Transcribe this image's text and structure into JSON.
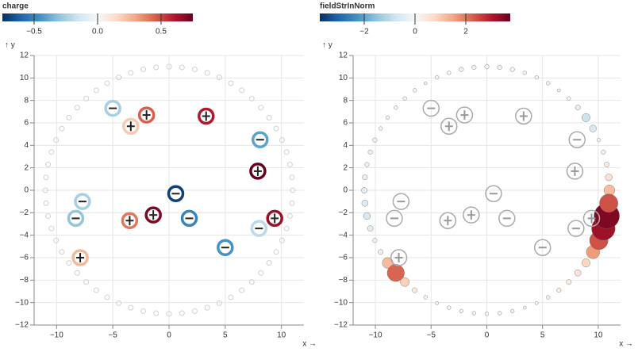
{
  "chart_data": [
    {
      "type": "charge-field",
      "legend_title": "charge",
      "x_label": "x →",
      "y_label": "↑ y",
      "color_scheme": [
        "#053061",
        "#2166ac",
        "#4393c3",
        "#92c5de",
        "#d1e5f0",
        "#f7f7f7",
        "#fddbc7",
        "#f4a582",
        "#d6604d",
        "#b2182b",
        "#67001f"
      ],
      "color_domain": [
        -0.75,
        0.75
      ],
      "legend_ticks": [
        {
          "value": -0.5,
          "label": "−0.5"
        },
        {
          "value": 0,
          "label": "0.0"
        },
        {
          "value": 0.5,
          "label": "0.5"
        }
      ],
      "xlim": [
        -12,
        12
      ],
      "ylim": [
        -12,
        12
      ],
      "grid": true,
      "xticks": [
        {
          "value": -10,
          "label": "−10"
        },
        {
          "value": -5,
          "label": "−5"
        },
        0,
        5,
        10
      ],
      "yticks": [
        {
          "value": -12,
          "label": "−12"
        },
        {
          "value": -10,
          "label": "−10"
        },
        {
          "value": -8,
          "label": "−8"
        },
        {
          "value": -6,
          "label": "−6"
        },
        {
          "value": -4,
          "label": "−4"
        },
        {
          "value": -2,
          "label": "−2"
        },
        0,
        2,
        4,
        6,
        8,
        10,
        12
      ],
      "charges": {
        "x": [
          -5.0,
          -3.4,
          -2.0,
          3.3,
          8.1,
          7.9,
          0.6,
          -7.7,
          -8.3,
          -3.5,
          -1.4,
          1.8,
          9.4,
          8.0,
          5.0,
          -7.9
        ],
        "y": [
          7.3,
          5.7,
          6.7,
          6.6,
          4.5,
          1.7,
          -0.3,
          -1.0,
          -2.5,
          -2.7,
          -2.2,
          -2.5,
          -2.5,
          -3.4,
          -5.1,
          -6.0
        ],
        "values": [
          -0.25,
          0.2,
          0.45,
          0.6,
          -0.4,
          0.75,
          -0.7,
          -0.25,
          -0.3,
          0.4,
          0.7,
          -0.5,
          0.65,
          -0.2,
          -0.45,
          0.25
        ]
      },
      "probes": {
        "x": [
          11,
          10.94,
          10.76,
          10.46,
          10.05,
          9.53,
          8.9,
          8.17,
          7.36,
          6.47,
          5.5,
          4.47,
          3.4,
          2.29,
          1.15,
          0,
          -1.15,
          -2.29,
          -3.4,
          -4.47,
          -5.5,
          -6.47,
          -7.36,
          -8.17,
          -8.9,
          -9.53,
          -10.05,
          -10.46,
          -10.76,
          -10.94,
          -11,
          -10.94,
          -10.76,
          -10.46,
          -10.05,
          -9.53,
          -8.9,
          -8.17,
          -7.36,
          -6.47,
          -5.5,
          -4.47,
          -3.4,
          -2.29,
          -1.15,
          0,
          1.15,
          2.29,
          3.4,
          4.47,
          5.5,
          6.47,
          7.36,
          8.17,
          8.9,
          9.53,
          10.05,
          10.46,
          10.76,
          10.94
        ],
        "y": [
          0,
          1.15,
          2.29,
          3.4,
          4.47,
          5.5,
          6.47,
          7.36,
          8.17,
          8.9,
          9.53,
          10.05,
          10.46,
          10.76,
          10.94,
          11,
          10.94,
          10.76,
          10.46,
          10.05,
          9.53,
          8.9,
          8.17,
          7.36,
          6.47,
          5.5,
          4.47,
          3.4,
          2.29,
          1.15,
          0,
          -1.15,
          -2.29,
          -3.4,
          -4.47,
          -5.5,
          -6.47,
          -7.36,
          -8.17,
          -8.9,
          -9.53,
          -10.05,
          -10.46,
          -10.76,
          -10.94,
          -11,
          -10.94,
          -10.76,
          -10.46,
          -10.05,
          -9.53,
          -8.9,
          -8.17,
          -7.36,
          -6.47,
          -5.5,
          -4.47,
          -3.4,
          -2.29,
          -1.15
        ]
      }
    },
    {
      "type": "field-strength",
      "legend_title": "fieldStrInNorm",
      "x_label": "x →",
      "y_label": "↑ y",
      "color_scheme": [
        "#053061",
        "#2166ac",
        "#4393c3",
        "#92c5de",
        "#d1e5f0",
        "#f7f7f7",
        "#fddbc7",
        "#f4a582",
        "#d6604d",
        "#b2182b",
        "#67001f"
      ],
      "color_domain": [
        -3.75,
        3.75
      ],
      "legend_ticks": [
        {
          "value": -2,
          "label": "−2"
        },
        0,
        2
      ],
      "xlim": [
        -12,
        12
      ],
      "ylim": [
        -12,
        12
      ],
      "grid": true,
      "xticks": [
        {
          "value": -10,
          "label": "−10"
        },
        {
          "value": -5,
          "label": "−5"
        },
        0,
        5,
        10
      ],
      "yticks": [
        {
          "value": -12,
          "label": "−12"
        },
        {
          "value": -10,
          "label": "−10"
        },
        {
          "value": -8,
          "label": "−8"
        },
        {
          "value": -6,
          "label": "−6"
        },
        {
          "value": -4,
          "label": "−4"
        },
        {
          "value": -2,
          "label": "−2"
        },
        0,
        2,
        4,
        6,
        8,
        10,
        12
      ],
      "charges": {
        "x": [
          -5.0,
          -3.4,
          -2.0,
          3.3,
          8.1,
          7.9,
          0.6,
          -7.7,
          -8.3,
          -3.5,
          -1.4,
          1.8,
          9.4,
          8.0,
          5.0,
          -7.9
        ],
        "y": [
          7.3,
          5.7,
          6.7,
          6.6,
          4.5,
          1.7,
          -0.3,
          -1.0,
          -2.5,
          -2.7,
          -2.2,
          -2.5,
          -2.5,
          -3.4,
          -5.1,
          -6.0
        ],
        "values": [
          -0.25,
          0.2,
          0.45,
          0.6,
          -0.4,
          0.75,
          -0.7,
          -0.25,
          -0.3,
          0.4,
          0.7,
          -0.5,
          0.65,
          -0.2,
          -0.45,
          0.25
        ]
      },
      "probes": {
        "x": [
          11,
          10.94,
          10.76,
          10.46,
          10.05,
          9.53,
          8.9,
          8.17,
          7.36,
          6.47,
          5.5,
          4.47,
          3.4,
          2.29,
          1.15,
          0,
          -1.15,
          -2.29,
          -3.4,
          -4.47,
          -5.5,
          -6.47,
          -7.36,
          -8.17,
          -8.9,
          -9.53,
          -10.05,
          -10.46,
          -10.76,
          -10.94,
          -11,
          -10.94,
          -10.76,
          -10.46,
          -10.05,
          -9.53,
          -8.9,
          -8.17,
          -7.36,
          -6.47,
          -5.5,
          -4.47,
          -3.4,
          -2.29,
          -1.15,
          0,
          1.15,
          2.29,
          3.4,
          4.47,
          5.5,
          6.47,
          7.36,
          8.17,
          8.9,
          9.53,
          10.05,
          10.46,
          10.76,
          10.94
        ],
        "y": [
          0,
          1.15,
          2.29,
          3.4,
          4.47,
          5.5,
          6.47,
          7.36,
          8.17,
          8.9,
          9.53,
          10.05,
          10.46,
          10.76,
          10.94,
          11,
          10.94,
          10.76,
          10.46,
          10.05,
          9.53,
          8.9,
          8.17,
          7.36,
          6.47,
          5.5,
          4.47,
          3.4,
          2.29,
          1.15,
          0,
          -1.15,
          -2.29,
          -3.4,
          -4.47,
          -5.5,
          -6.47,
          -7.36,
          -8.17,
          -8.9,
          -9.53,
          -10.05,
          -10.46,
          -10.76,
          -10.94,
          -11,
          -10.94,
          -10.76,
          -10.46,
          -10.05,
          -9.53,
          -8.9,
          -8.17,
          -7.36,
          -6.47,
          -5.5,
          -4.47,
          -3.4,
          -2.29,
          -1.15
        ],
        "values": [
          1.2,
          0.6,
          0.3,
          0.2,
          0.1,
          -0.6,
          -0.8,
          -0.3,
          -0.1,
          0.0,
          0.1,
          0.1,
          0.1,
          0.2,
          0.2,
          0.2,
          0.2,
          0.2,
          0.1,
          0.1,
          0.0,
          -0.1,
          -0.1,
          -0.1,
          -0.1,
          -0.1,
          -0.2,
          -0.2,
          -0.2,
          -0.3,
          -0.4,
          -0.5,
          -0.6,
          -0.4,
          -0.2,
          0.3,
          1.2,
          2.2,
          0.9,
          0.3,
          0.1,
          0.0,
          -0.1,
          -0.1,
          -0.1,
          -0.1,
          -0.1,
          -0.1,
          0.0,
          0.0,
          0.1,
          0.2,
          0.3,
          0.5,
          0.8,
          1.6,
          2.4,
          3.2,
          3.5,
          2.4
        ]
      }
    }
  ]
}
